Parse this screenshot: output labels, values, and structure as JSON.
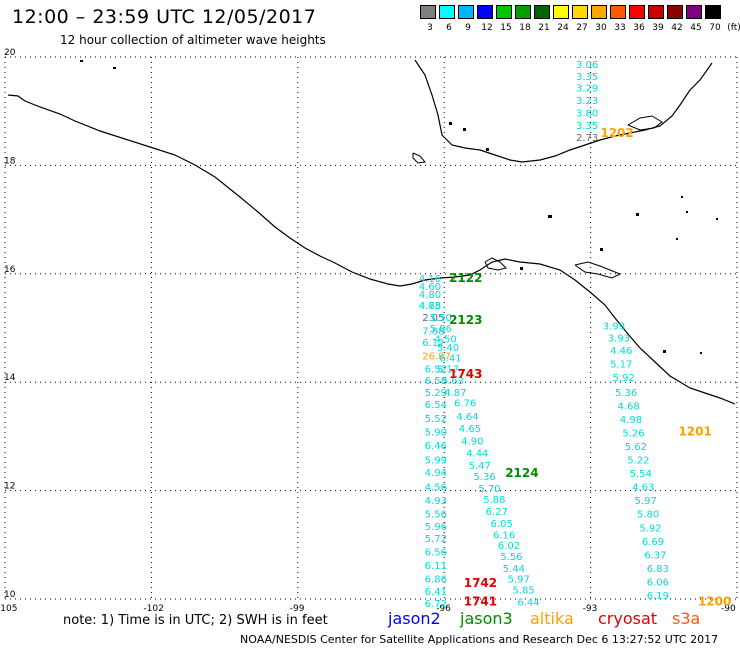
{
  "header": {
    "title": "12:00 – 23:59 UTC 12/05/2017",
    "subtitle": "12 hour collection of altimeter wave heights"
  },
  "color_scale": {
    "labels": [
      "3",
      "6",
      "9",
      "12",
      "15",
      "18",
      "21",
      "24",
      "27",
      "30",
      "33",
      "36",
      "39",
      "42",
      "45",
      "70",
      "(ft)"
    ],
    "colors": [
      "#808080",
      "#00ffff",
      "#00b7ff",
      "#0000ff",
      "#00c800",
      "#00a000",
      "#006400",
      "#ffff00",
      "#ffd700",
      "#ffa500",
      "#ff5a00",
      "#ff0000",
      "#c80000",
      "#8b0000",
      "#800080",
      "#000000"
    ]
  },
  "map": {
    "lat_labels": [
      "20",
      "18",
      "16",
      "14",
      "12",
      "10"
    ],
    "lat_values": [
      20,
      18,
      16,
      14,
      12,
      10
    ],
    "lon_labels": [
      "-105",
      "-102",
      "-99",
      "-96",
      "-93",
      "-90"
    ],
    "lon_values": [
      -105,
      -102,
      -99,
      -96,
      -93,
      -90
    ],
    "lon_range": [
      -105,
      -90
    ],
    "lat_range": [
      10,
      20
    ],
    "grid": "dotted"
  },
  "colors": {
    "jason2": "#00dcdc",
    "jason2_label": "#0000ff",
    "jason3": "#008c00",
    "altika": "#ffa000",
    "cryosat": "#e00000",
    "gray": "#696969",
    "coast": "#000000"
  },
  "tracks": [
    {
      "satellite": "jason2",
      "points": [
        {
          "lon": -93.3,
          "lat": 19.8,
          "value": "3.06"
        },
        {
          "lon": -93.3,
          "lat": 19.58,
          "value": "3.35"
        },
        {
          "lon": -93.3,
          "lat": 19.36,
          "value": "3.29"
        },
        {
          "lon": -93.3,
          "lat": 19.13,
          "value": "3.23"
        },
        {
          "lon": -93.3,
          "lat": 18.9,
          "value": "3.80"
        },
        {
          "lon": -93.3,
          "lat": 18.67,
          "value": "3.35"
        }
      ]
    },
    {
      "satellite": "gray",
      "points": [
        {
          "lon": -93.3,
          "lat": 18.45,
          "value": "2.73"
        },
        {
          "lon": -96.45,
          "lat": 15.13,
          "value": "2.05"
        }
      ]
    },
    {
      "satellite": "altika",
      "points": [
        {
          "lon": -96.45,
          "lat": 14.42,
          "value": "26.87"
        }
      ]
    },
    {
      "satellite": "jason2",
      "points": [
        {
          "lon": -96.52,
          "lat": 15.85,
          "value": "4.16"
        },
        {
          "lon": -96.52,
          "lat": 15.7,
          "value": "4.60"
        },
        {
          "lon": -96.52,
          "lat": 15.55,
          "value": "4.80"
        },
        {
          "lon": -96.52,
          "lat": 15.35,
          "value": "4.78"
        },
        {
          "lon": -96.52,
          "lat": 15.35,
          "value": "4.65"
        },
        {
          "lon": -96.3,
          "lat": 15.13,
          "value": "5.50"
        },
        {
          "lon": -96.3,
          "lat": 14.93,
          "value": "5.86"
        },
        {
          "lon": -96.45,
          "lat": 14.88,
          "value": "7.88"
        },
        {
          "lon": -96.2,
          "lat": 14.73,
          "value": "4.50"
        },
        {
          "lon": -96.45,
          "lat": 14.67,
          "value": "6.12"
        },
        {
          "lon": -96.15,
          "lat": 14.58,
          "value": "5.40"
        },
        {
          "lon": -96.1,
          "lat": 14.38,
          "value": "6.41"
        },
        {
          "lon": -96.4,
          "lat": 14.18,
          "value": "6.52"
        },
        {
          "lon": -96.15,
          "lat": 14.18,
          "value": "5.17"
        },
        {
          "lon": -96.4,
          "lat": 13.97,
          "value": "6.58"
        },
        {
          "lon": -96.05,
          "lat": 13.97,
          "value": "5.63"
        },
        {
          "lon": -96.4,
          "lat": 13.75,
          "value": "5.29"
        },
        {
          "lon": -96.0,
          "lat": 13.75,
          "value": "4.87"
        },
        {
          "lon": -96.4,
          "lat": 13.52,
          "value": "6.54"
        },
        {
          "lon": -95.8,
          "lat": 13.55,
          "value": "6.76"
        },
        {
          "lon": -96.4,
          "lat": 13.27,
          "value": "5.52"
        },
        {
          "lon": -95.75,
          "lat": 13.3,
          "value": "4.64"
        },
        {
          "lon": -96.4,
          "lat": 13.02,
          "value": "5.90"
        },
        {
          "lon": -95.7,
          "lat": 13.08,
          "value": "4.65"
        },
        {
          "lon": -95.65,
          "lat": 12.85,
          "value": "4.90"
        },
        {
          "lon": -96.4,
          "lat": 12.77,
          "value": "6.46"
        },
        {
          "lon": -95.55,
          "lat": 12.63,
          "value": "4.44"
        },
        {
          "lon": -96.4,
          "lat": 12.5,
          "value": "5.99"
        },
        {
          "lon": -95.5,
          "lat": 12.4,
          "value": "5.47"
        },
        {
          "lon": -96.4,
          "lat": 12.27,
          "value": "4.94"
        },
        {
          "lon": -95.4,
          "lat": 12.2,
          "value": "5.36"
        },
        {
          "lon": -96.4,
          "lat": 12.0,
          "value": "4.56"
        },
        {
          "lon": -95.3,
          "lat": 11.97,
          "value": "5.70"
        },
        {
          "lon": -96.4,
          "lat": 11.75,
          "value": "4.93"
        },
        {
          "lon": -95.2,
          "lat": 11.77,
          "value": "5.88"
        },
        {
          "lon": -96.4,
          "lat": 11.5,
          "value": "5.56"
        },
        {
          "lon": -95.15,
          "lat": 11.55,
          "value": "6.27"
        },
        {
          "lon": -96.4,
          "lat": 11.27,
          "value": "5.96"
        },
        {
          "lon": -95.05,
          "lat": 11.33,
          "value": "6.05"
        },
        {
          "lon": -96.4,
          "lat": 11.05,
          "value": "5.72"
        },
        {
          "lon": -95.0,
          "lat": 11.12,
          "value": "6.16"
        },
        {
          "lon": -94.9,
          "lat": 10.92,
          "value": "6.02"
        },
        {
          "lon": -96.4,
          "lat": 10.8,
          "value": "6.56"
        },
        {
          "lon": -94.85,
          "lat": 10.72,
          "value": "5.56"
        },
        {
          "lon": -96.4,
          "lat": 10.55,
          "value": "6.11"
        },
        {
          "lon": -94.8,
          "lat": 10.5,
          "value": "5.44"
        },
        {
          "lon": -96.4,
          "lat": 10.3,
          "value": "6.86"
        },
        {
          "lon": -94.7,
          "lat": 10.3,
          "value": "5.97"
        },
        {
          "lon": -96.4,
          "lat": 10.07,
          "value": "6.41"
        },
        {
          "lon": -94.6,
          "lat": 10.1,
          "value": "5.85"
        },
        {
          "lon": -96.4,
          "lat": 9.85,
          "value": "6.72"
        },
        {
          "lon": -94.5,
          "lat": 9.88,
          "value": "6.44"
        }
      ]
    },
    {
      "satellite": "jason2",
      "points": [
        {
          "lon": -92.75,
          "lat": 14.97,
          "value": "3.99"
        },
        {
          "lon": -92.65,
          "lat": 14.75,
          "value": "3.93"
        },
        {
          "lon": -92.6,
          "lat": 14.52,
          "value": "4.46"
        },
        {
          "lon": -92.6,
          "lat": 14.27,
          "value": "5.17"
        },
        {
          "lon": -92.55,
          "lat": 14.02,
          "value": "5.92"
        },
        {
          "lon": -92.5,
          "lat": 13.75,
          "value": "5.36"
        },
        {
          "lon": -92.45,
          "lat": 13.5,
          "value": "4.68"
        },
        {
          "lon": -92.4,
          "lat": 13.25,
          "value": "4.98"
        },
        {
          "lon": -92.35,
          "lat": 13.0,
          "value": "5.26"
        },
        {
          "lon": -92.3,
          "lat": 12.75,
          "value": "5.62"
        },
        {
          "lon": -92.25,
          "lat": 12.5,
          "value": "5.22"
        },
        {
          "lon": -92.2,
          "lat": 12.25,
          "value": "5.54"
        },
        {
          "lon": -92.15,
          "lat": 12.0,
          "value": "4.63"
        },
        {
          "lon": -92.1,
          "lat": 11.75,
          "value": "5.97"
        },
        {
          "lon": -92.05,
          "lat": 11.5,
          "value": "5.80"
        },
        {
          "lon": -92.0,
          "lat": 11.25,
          "value": "5.92"
        },
        {
          "lon": -91.95,
          "lat": 11.0,
          "value": "6.69"
        },
        {
          "lon": -91.9,
          "lat": 10.75,
          "value": "6.37"
        },
        {
          "lon": -91.85,
          "lat": 10.5,
          "value": "6.83"
        },
        {
          "lon": -91.85,
          "lat": 10.25,
          "value": "6.06"
        },
        {
          "lon": -91.85,
          "lat": 10.0,
          "value": "6.19"
        }
      ]
    }
  ],
  "time_labels": [
    {
      "text": "2122",
      "lon": -95.9,
      "lat": 15.85,
      "satellite": "jason3"
    },
    {
      "text": "2123",
      "lon": -95.9,
      "lat": 15.07,
      "satellite": "jason3"
    },
    {
      "text": "1743",
      "lon": -95.9,
      "lat": 14.08,
      "satellite": "cryosat"
    },
    {
      "text": "2124",
      "lon": -94.75,
      "lat": 12.25,
      "satellite": "jason3"
    },
    {
      "text": "1742",
      "lon": -95.6,
      "lat": 10.22,
      "satellite": "cryosat"
    },
    {
      "text": "1741",
      "lon": -95.6,
      "lat": 9.88,
      "satellite": "cryosat"
    },
    {
      "text": "1202",
      "lon": -92.8,
      "lat": 18.52,
      "satellite": "altika"
    },
    {
      "text": "1201",
      "lon": -91.2,
      "lat": 13.02,
      "satellite": "altika"
    },
    {
      "text": "1200",
      "lon": -90.8,
      "lat": 9.88,
      "satellite": "altika"
    }
  ],
  "footer": {
    "note": "note: 1) Time is in UTC; 2) SWH is in feet",
    "legend": [
      {
        "label": "jason2",
        "color": "#0000ff"
      },
      {
        "label": "jason3",
        "color": "#008c00"
      },
      {
        "label": "altika",
        "color": "#ffa000"
      },
      {
        "label": "cryosat",
        "color": "#e00000"
      },
      {
        "label": "s3a",
        "color": "#ff5a00"
      }
    ],
    "credit": "NOAA/NESDIS Center for Satellite Applications and Research    Dec  6 13:27:52 UTC 2017"
  }
}
